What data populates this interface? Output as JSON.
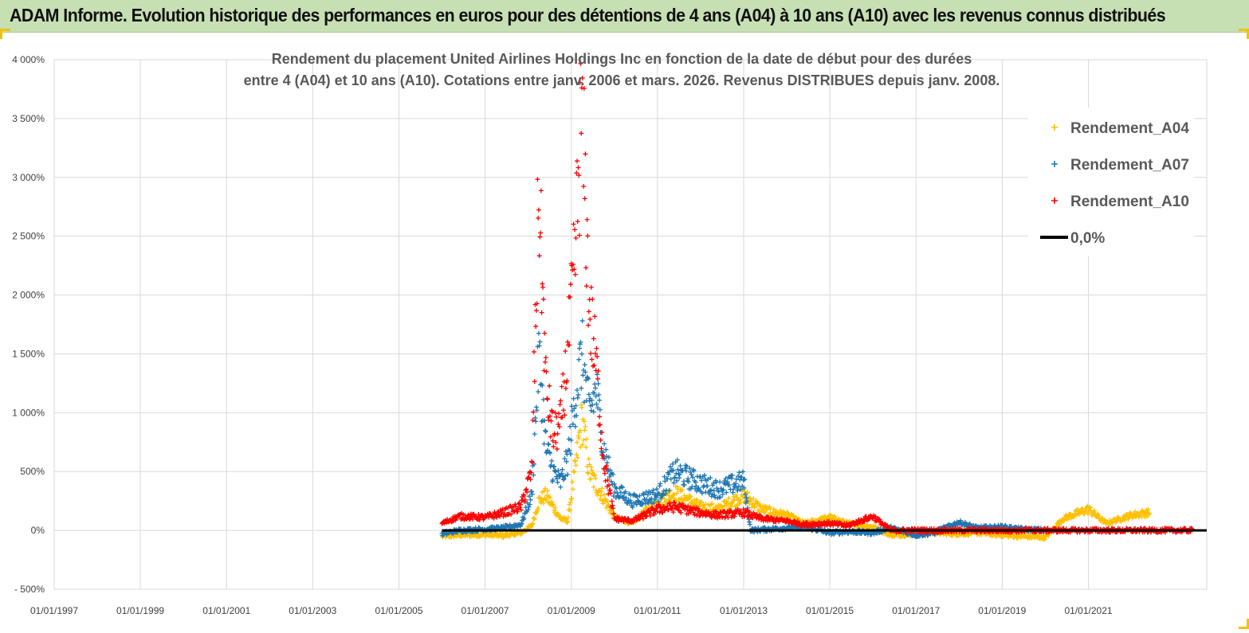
{
  "banner": {
    "title": "ADAM Informe. Evolution historique des performances en euros pour des détentions de 4 ans (A04) à 10 ans (A10) avec les revenus connus distribués"
  },
  "colors": {
    "banner_bg": "#c6e0b4",
    "A04": "#ffc000",
    "A07": "#1f77b4",
    "A10": "#ff0000",
    "zero": "#000000",
    "grid": "#d9d9d9"
  },
  "chart_data": {
    "type": "scatter",
    "title_lines": [
      "Rendement du placement United Airlines Holdings Inc en fonction de la date de début pour des durées",
      "entre 4 (A04) et 10 ans (A10). Cotations entre janv. 2006 et mars. 2026. Revenus DISTRIBUES depuis janv. 2008."
    ],
    "xlabel": "",
    "ylabel": "",
    "x_range": [
      "1997-01-01",
      "2023-10-01"
    ],
    "x_ticks": [
      "01/01/1997",
      "01/01/1999",
      "01/01/2001",
      "01/01/2003",
      "01/01/2005",
      "01/01/2007",
      "01/01/2009",
      "01/01/2011",
      "01/01/2013",
      "01/01/2015",
      "01/01/2017",
      "01/01/2019",
      "01/01/2021"
    ],
    "y_range": [
      -500,
      4000
    ],
    "y_ticks": [
      -500,
      0,
      500,
      1000,
      1500,
      2000,
      2500,
      3000,
      3500,
      4000
    ],
    "y_tick_labels": [
      "- 500%",
      "0%",
      "500%",
      "1 000%",
      "1 500%",
      "2 000%",
      "2 500%",
      "3 000%",
      "3 500%",
      "4 000%"
    ],
    "grid": true,
    "legend_position": "top-right",
    "marker": "+",
    "series": [
      {
        "name": "Rendement_A04",
        "color": "#ffc000",
        "points": [
          [
            "2006-01-01",
            -50
          ],
          [
            "2006-06-01",
            -40
          ],
          [
            "2007-01-01",
            -35
          ],
          [
            "2007-06-01",
            -45
          ],
          [
            "2007-11-01",
            -20
          ],
          [
            "2008-02-01",
            40
          ],
          [
            "2008-04-01",
            250
          ],
          [
            "2008-06-01",
            300
          ],
          [
            "2008-08-01",
            200
          ],
          [
            "2008-10-01",
            100
          ],
          [
            "2008-12-01",
            80
          ],
          [
            "2009-02-01",
            500
          ],
          [
            "2009-04-01",
            950
          ],
          [
            "2009-06-01",
            500
          ],
          [
            "2009-08-01",
            380
          ],
          [
            "2009-10-01",
            280
          ],
          [
            "2010-01-01",
            110
          ],
          [
            "2010-06-01",
            60
          ],
          [
            "2011-01-01",
            250
          ],
          [
            "2011-06-01",
            320
          ],
          [
            "2012-01-01",
            200
          ],
          [
            "2012-06-01",
            180
          ],
          [
            "2013-01-01",
            300
          ],
          [
            "2013-06-01",
            180
          ],
          [
            "2014-01-01",
            130
          ],
          [
            "2014-06-01",
            60
          ],
          [
            "2015-01-01",
            110
          ],
          [
            "2015-06-01",
            60
          ],
          [
            "2016-01-01",
            30
          ],
          [
            "2016-06-01",
            -40
          ],
          [
            "2017-01-01",
            -30
          ],
          [
            "2017-06-01",
            -20
          ],
          [
            "2018-01-01",
            -30
          ],
          [
            "2018-06-01",
            -20
          ],
          [
            "2019-01-01",
            -40
          ],
          [
            "2019-06-01",
            -50
          ],
          [
            "2020-01-01",
            -60
          ],
          [
            "2020-06-01",
            100
          ],
          [
            "2021-01-01",
            180
          ],
          [
            "2021-06-01",
            60
          ],
          [
            "2022-01-01",
            130
          ],
          [
            "2022-06-01",
            150
          ]
        ]
      },
      {
        "name": "Rendement_A07",
        "color": "#1f77b4",
        "points": [
          [
            "2006-01-01",
            -30
          ],
          [
            "2006-06-01",
            0
          ],
          [
            "2007-01-01",
            10
          ],
          [
            "2007-06-01",
            20
          ],
          [
            "2007-11-01",
            50
          ],
          [
            "2008-02-01",
            300
          ],
          [
            "2008-04-01",
            1500
          ],
          [
            "2008-06-01",
            700
          ],
          [
            "2008-08-01",
            500
          ],
          [
            "2008-10-01",
            400
          ],
          [
            "2008-12-01",
            600
          ],
          [
            "2009-02-01",
            1100
          ],
          [
            "2009-04-01",
            1500
          ],
          [
            "2009-06-01",
            1000
          ],
          [
            "2009-08-01",
            1200
          ],
          [
            "2009-10-01",
            700
          ],
          [
            "2010-01-01",
            350
          ],
          [
            "2010-06-01",
            250
          ],
          [
            "2011-01-01",
            300
          ],
          [
            "2011-06-01",
            500
          ],
          [
            "2012-01-01",
            400
          ],
          [
            "2012-06-01",
            350
          ],
          [
            "2013-01-01",
            420
          ],
          [
            "2013-03-01",
            0
          ],
          [
            "2014-01-01",
            20
          ],
          [
            "2014-06-01",
            30
          ],
          [
            "2015-01-01",
            -20
          ],
          [
            "2015-06-01",
            -10
          ],
          [
            "2016-01-01",
            -20
          ],
          [
            "2016-06-01",
            20
          ],
          [
            "2017-01-01",
            -40
          ],
          [
            "2017-06-01",
            -20
          ],
          [
            "2018-01-01",
            70
          ],
          [
            "2018-06-01",
            20
          ],
          [
            "2019-01-01",
            30
          ],
          [
            "2019-06-01",
            10
          ],
          [
            "2020-01-01",
            0
          ]
        ]
      },
      {
        "name": "Rendement_A10",
        "color": "#ff0000",
        "points": [
          [
            "2006-01-01",
            60
          ],
          [
            "2006-06-01",
            120
          ],
          [
            "2007-01-01",
            110
          ],
          [
            "2007-06-01",
            150
          ],
          [
            "2007-11-01",
            200
          ],
          [
            "2008-02-01",
            500
          ],
          [
            "2008-04-01",
            2900
          ],
          [
            "2008-06-01",
            1200
          ],
          [
            "2008-08-01",
            800
          ],
          [
            "2008-10-01",
            900
          ],
          [
            "2008-12-01",
            1500
          ],
          [
            "2009-02-01",
            2300
          ],
          [
            "2009-04-01",
            3650
          ],
          [
            "2009-06-01",
            1900
          ],
          [
            "2009-08-01",
            1400
          ],
          [
            "2009-10-01",
            600
          ],
          [
            "2010-01-01",
            100
          ],
          [
            "2010-06-01",
            80
          ],
          [
            "2011-01-01",
            180
          ],
          [
            "2011-06-01",
            200
          ],
          [
            "2012-01-01",
            150
          ],
          [
            "2012-06-01",
            130
          ],
          [
            "2013-01-01",
            150
          ],
          [
            "2013-06-01",
            100
          ],
          [
            "2014-01-01",
            80
          ],
          [
            "2014-06-01",
            50
          ],
          [
            "2015-01-01",
            60
          ],
          [
            "2015-06-01",
            40
          ],
          [
            "2016-01-01",
            120
          ],
          [
            "2016-06-01",
            0
          ],
          [
            "2017-01-01",
            0
          ],
          [
            "2018-01-01",
            0
          ],
          [
            "2019-01-01",
            0
          ],
          [
            "2020-01-01",
            0
          ],
          [
            "2021-01-01",
            0
          ],
          [
            "2022-01-01",
            0
          ],
          [
            "2023-06-01",
            0
          ]
        ]
      },
      {
        "name": "0,0%",
        "color": "#000000",
        "style": "line",
        "points": [
          [
            "2006-01-01",
            0
          ],
          [
            "2023-10-01",
            0
          ]
        ]
      }
    ]
  }
}
